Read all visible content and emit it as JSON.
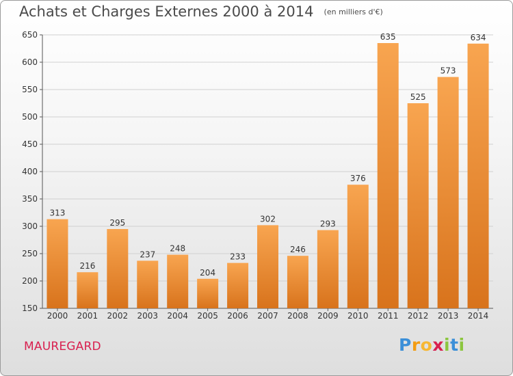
{
  "chart_data": {
    "type": "bar",
    "title": "Achats et Charges Externes 2000 à 2014",
    "subtitle": "(en milliers d'€)",
    "categories": [
      "2000",
      "2001",
      "2002",
      "2003",
      "2004",
      "2005",
      "2006",
      "2007",
      "2008",
      "2009",
      "2010",
      "2011",
      "2012",
      "2013",
      "2014"
    ],
    "values": [
      313,
      216,
      295,
      237,
      248,
      204,
      233,
      302,
      246,
      293,
      376,
      635,
      525,
      573,
      634
    ],
    "ylim": [
      150,
      650
    ],
    "yticks": [
      150,
      200,
      250,
      300,
      350,
      400,
      450,
      500,
      550,
      600,
      650
    ],
    "grid": true,
    "bar_color": "#f0913a"
  },
  "footer": {
    "city": "MAUREGARD",
    "city_color": "#d8204f",
    "logo_letters": [
      "P",
      "r",
      "o",
      "x",
      "i",
      "t",
      "i"
    ],
    "logo_colors": [
      "#3b8fd8",
      "#f39c12",
      "#f7b733",
      "#d8204f",
      "#8cc63f",
      "#3b8fd8",
      "#8cc63f"
    ]
  }
}
